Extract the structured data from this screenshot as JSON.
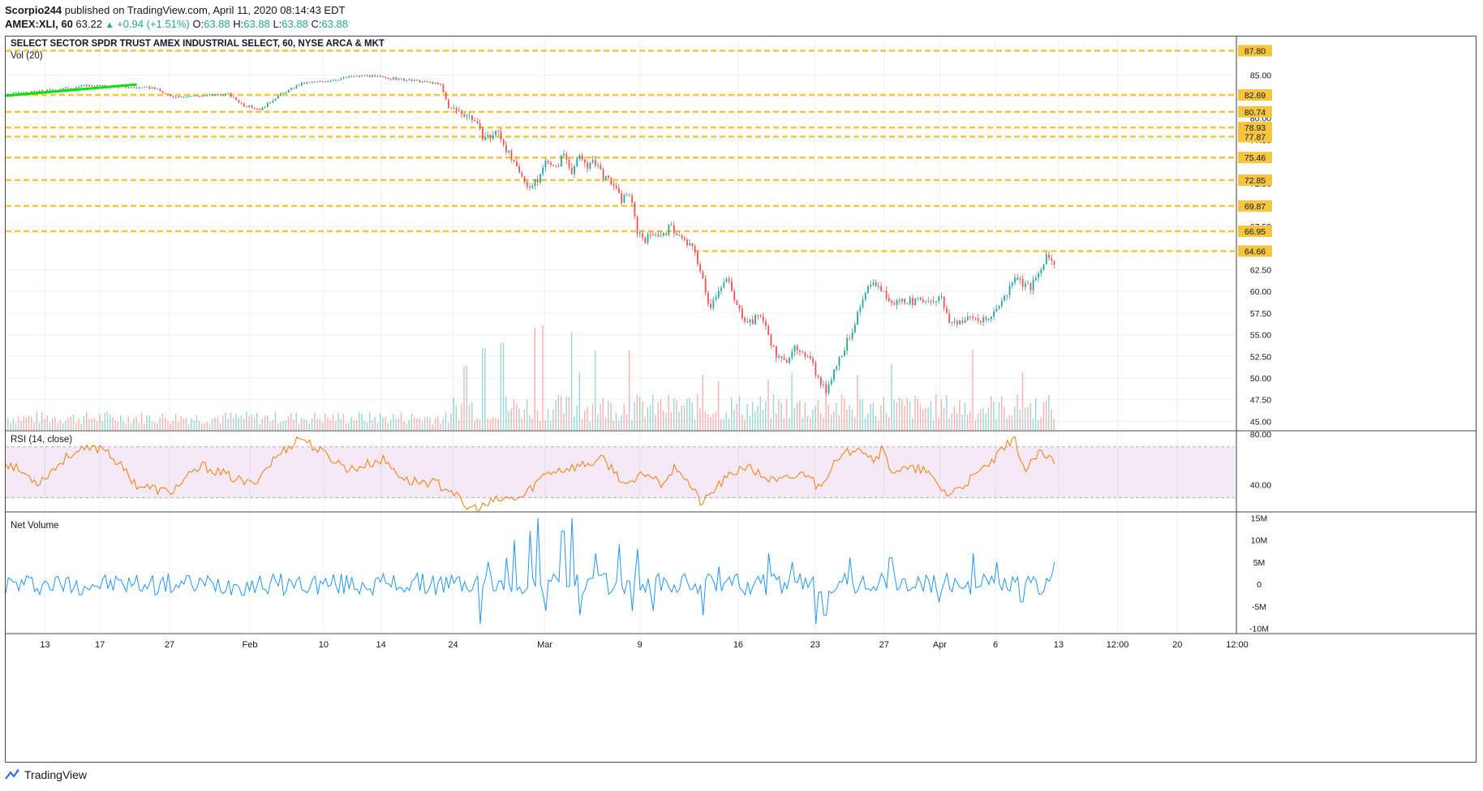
{
  "header": {
    "author": "Scorpio244",
    "published": "published on TradingView.com, April 11, 2020 08:14:43 EDT",
    "symbol": "AMEX:XLI, 60",
    "last": "63.22",
    "change": "+0.94 (+1.51%)",
    "o_label": "O:",
    "o_value": "63.88",
    "h_label": "H:",
    "h_value": "63.88",
    "l_label": "L:",
    "l_value": "63.88",
    "c_label": "C:",
    "c_value": "63.88"
  },
  "footer": {
    "brand": "TradingView"
  },
  "colors": {
    "up": "#26a69a",
    "down": "#ef5350",
    "level": "#f5c53d",
    "rsi": "#f57c00",
    "netvol": "#2196f3",
    "trend": "#00e600"
  },
  "chart_data": [
    {
      "type": "candlestick",
      "title": "SELECT SECTOR SPDR TRUST AMEX INDUSTRIAL SELECT, 60, NYSE ARCA & MKT",
      "volume_label": "Vol (20)",
      "y_ticks": [
        "85.00",
        "80.00",
        "77.50",
        "72.50",
        "67.50",
        "62.50",
        "60.00",
        "57.50",
        "55.00",
        "52.50",
        "50.00",
        "47.50",
        "45.00"
      ],
      "ylim": [
        44.0,
        88.5
      ],
      "x_ticks": [
        "13",
        "17",
        "27",
        "Feb",
        "10",
        "14",
        "24",
        "Mar",
        "9",
        "16",
        "23",
        "27",
        "Apr",
        "6",
        "13",
        "12:00",
        "20",
        "12:00"
      ],
      "levels": [
        87.8,
        82.69,
        80.74,
        78.93,
        77.87,
        75.46,
        72.85,
        69.87,
        66.95,
        64.66
      ],
      "level_labels": [
        "87.80",
        "82.69",
        "80.74",
        "78.93",
        "77.87",
        "75.46",
        "72.85",
        "69.87",
        "66.95",
        "64.66"
      ],
      "price_path": [
        [
          0,
          82.8
        ],
        [
          30,
          83.0
        ],
        [
          60,
          83.3
        ],
        [
          100,
          83.8
        ],
        [
          140,
          83.6
        ],
        [
          180,
          83.5
        ],
        [
          200,
          82.5
        ],
        [
          240,
          82.6
        ],
        [
          270,
          82.8
        ],
        [
          290,
          81.5
        ],
        [
          310,
          81.0
        ],
        [
          330,
          82.5
        ],
        [
          360,
          84.0
        ],
        [
          390,
          84.3
        ],
        [
          420,
          84.8
        ],
        [
          440,
          84.9
        ],
        [
          470,
          84.6
        ],
        [
          500,
          84.3
        ],
        [
          520,
          84.1
        ],
        [
          530,
          83.8
        ],
        [
          540,
          81.2
        ],
        [
          555,
          80.7
        ],
        [
          570,
          80.0
        ],
        [
          580,
          78.0
        ],
        [
          590,
          77.8
        ],
        [
          600,
          78.5
        ],
        [
          610,
          76.5
        ],
        [
          620,
          74.5
        ],
        [
          630,
          73.0
        ],
        [
          640,
          72.0
        ],
        [
          650,
          73.0
        ],
        [
          660,
          75.5
        ],
        [
          670,
          74.0
        ],
        [
          680,
          76.0
        ],
        [
          690,
          74.0
        ],
        [
          700,
          75.5
        ],
        [
          710,
          74.5
        ],
        [
          720,
          75.0
        ],
        [
          730,
          73.0
        ],
        [
          740,
          72.5
        ],
        [
          750,
          70.5
        ],
        [
          760,
          71.5
        ],
        [
          770,
          67.0
        ],
        [
          780,
          66.0
        ],
        [
          790,
          67.0
        ],
        [
          800,
          66.2
        ],
        [
          810,
          67.5
        ],
        [
          820,
          66.5
        ],
        [
          830,
          65.5
        ],
        [
          840,
          64.8
        ],
        [
          850,
          61.2
        ],
        [
          855,
          59.0
        ],
        [
          860,
          58.5
        ],
        [
          870,
          60.5
        ],
        [
          880,
          61.5
        ],
        [
          890,
          58.5
        ],
        [
          900,
          57.0
        ],
        [
          910,
          56.5
        ],
        [
          920,
          57.5
        ],
        [
          930,
          55.0
        ],
        [
          940,
          52.5
        ],
        [
          950,
          51.8
        ],
        [
          960,
          53.5
        ],
        [
          970,
          52.5
        ],
        [
          980,
          53.0
        ],
        [
          990,
          50.0
        ],
        [
          1000,
          48.5
        ],
        [
          1010,
          51.0
        ],
        [
          1020,
          53.0
        ],
        [
          1030,
          55.0
        ],
        [
          1040,
          57.5
        ],
        [
          1050,
          60.0
        ],
        [
          1060,
          61.0
        ],
        [
          1070,
          60.0
        ],
        [
          1080,
          58.5
        ],
        [
          1090,
          59.0
        ],
        [
          1100,
          59.0
        ],
        [
          1110,
          58.8
        ],
        [
          1120,
          59.0
        ],
        [
          1130,
          59.0
        ],
        [
          1140,
          59.5
        ],
        [
          1150,
          56.5
        ],
        [
          1160,
          56.5
        ],
        [
          1170,
          56.8
        ],
        [
          1180,
          57.0
        ],
        [
          1190,
          56.5
        ],
        [
          1200,
          56.8
        ],
        [
          1210,
          58.5
        ],
        [
          1220,
          59.5
        ],
        [
          1230,
          62.0
        ],
        [
          1240,
          61.0
        ],
        [
          1250,
          60.5
        ],
        [
          1260,
          62.0
        ],
        [
          1270,
          64.0
        ],
        [
          1280,
          63.2
        ]
      ],
      "volume_peaks": [
        [
          560,
          0.58
        ],
        [
          583,
          0.74
        ],
        [
          605,
          0.79
        ],
        [
          645,
          0.93
        ],
        [
          655,
          0.95
        ],
        [
          690,
          0.89
        ],
        [
          700,
          0.52
        ],
        [
          720,
          0.72
        ],
        [
          760,
          0.72
        ],
        [
          850,
          0.5
        ],
        [
          870,
          0.44
        ],
        [
          930,
          0.46
        ],
        [
          960,
          0.52
        ],
        [
          1000,
          0.45
        ],
        [
          1040,
          0.5
        ],
        [
          1080,
          0.6
        ],
        [
          1180,
          0.73
        ],
        [
          1240,
          0.52
        ]
      ]
    },
    {
      "type": "line",
      "title": "RSI (14, close)",
      "y_ticks": [
        "80.00",
        "40.00"
      ],
      "bands": [
        70,
        30
      ],
      "ylim": [
        20,
        82
      ],
      "series_keypoints": [
        [
          0,
          58
        ],
        [
          40,
          42
        ],
        [
          80,
          65
        ],
        [
          120,
          70
        ],
        [
          160,
          40
        ],
        [
          200,
          34
        ],
        [
          240,
          55
        ],
        [
          280,
          45
        ],
        [
          300,
          40
        ],
        [
          330,
          62
        ],
        [
          360,
          78
        ],
        [
          380,
          68
        ],
        [
          420,
          52
        ],
        [
          460,
          60
        ],
        [
          490,
          43
        ],
        [
          520,
          42
        ],
        [
          545,
          36
        ],
        [
          560,
          22
        ],
        [
          580,
          22
        ],
        [
          600,
          28
        ],
        [
          630,
          30
        ],
        [
          660,
          50
        ],
        [
          700,
          55
        ],
        [
          730,
          60
        ],
        [
          760,
          38
        ],
        [
          780,
          50
        ],
        [
          800,
          42
        ],
        [
          820,
          55
        ],
        [
          850,
          25
        ],
        [
          870,
          40
        ],
        [
          900,
          55
        ],
        [
          940,
          42
        ],
        [
          980,
          50
        ],
        [
          990,
          38
        ],
        [
          1010,
          55
        ],
        [
          1040,
          72
        ],
        [
          1060,
          60
        ],
        [
          1070,
          68
        ],
        [
          1080,
          52
        ],
        [
          1120,
          52
        ],
        [
          1150,
          32
        ],
        [
          1180,
          45
        ],
        [
          1210,
          62
        ],
        [
          1230,
          78
        ],
        [
          1245,
          50
        ],
        [
          1260,
          65
        ],
        [
          1280,
          58
        ]
      ]
    },
    {
      "type": "line",
      "title": "Net Volume",
      "y_ticks": [
        "15M",
        "10M",
        "5M",
        "0",
        "-5M",
        "-10M"
      ],
      "ylim": [
        -11,
        16
      ],
      "spikes": [
        [
          580,
          -9
        ],
        [
          590,
          5
        ],
        [
          610,
          6
        ],
        [
          620,
          10
        ],
        [
          640,
          12
        ],
        [
          650,
          15
        ],
        [
          660,
          -6
        ],
        [
          680,
          12
        ],
        [
          690,
          15
        ],
        [
          700,
          -7
        ],
        [
          720,
          7
        ],
        [
          750,
          9
        ],
        [
          765,
          -6
        ],
        [
          770,
          8
        ],
        [
          790,
          -6
        ],
        [
          850,
          -7
        ],
        [
          870,
          4
        ],
        [
          930,
          7
        ],
        [
          960,
          5
        ],
        [
          990,
          -9
        ],
        [
          1000,
          -7
        ],
        [
          1030,
          6
        ],
        [
          1080,
          6
        ],
        [
          1140,
          -4
        ],
        [
          1180,
          7
        ],
        [
          1210,
          5
        ],
        [
          1240,
          -4
        ],
        [
          1280,
          5
        ]
      ]
    }
  ]
}
